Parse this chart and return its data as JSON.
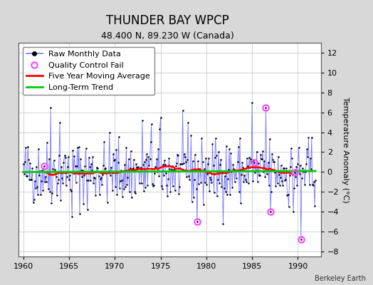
{
  "title": "THUNDER BAY WPCP",
  "subtitle": "48.400 N, 89.230 W (Canada)",
  "ylabel": "Temperature Anomaly (°C)",
  "attribution": "Berkeley Earth",
  "xlim": [
    1959.5,
    1992.5
  ],
  "ylim": [
    -8.5,
    13.0
  ],
  "yticks": [
    -8,
    -6,
    -4,
    -2,
    0,
    2,
    4,
    6,
    8,
    10,
    12
  ],
  "xticks": [
    1960,
    1965,
    1970,
    1975,
    1980,
    1985,
    1990
  ],
  "background_color": "#d8d8d8",
  "plot_bg_color": "#ffffff",
  "raw_line_color": "#7777ff",
  "raw_marker_color": "#000000",
  "ma_color": "#ff0000",
  "trend_color": "#00cc00",
  "qc_color": "#ff44ff",
  "seed": 42,
  "n_months": 384,
  "start_year": 1960,
  "ma_window": 60,
  "title_fontsize": 12,
  "subtitle_fontsize": 9,
  "axis_fontsize": 8,
  "tick_fontsize": 8,
  "legend_fontsize": 8
}
